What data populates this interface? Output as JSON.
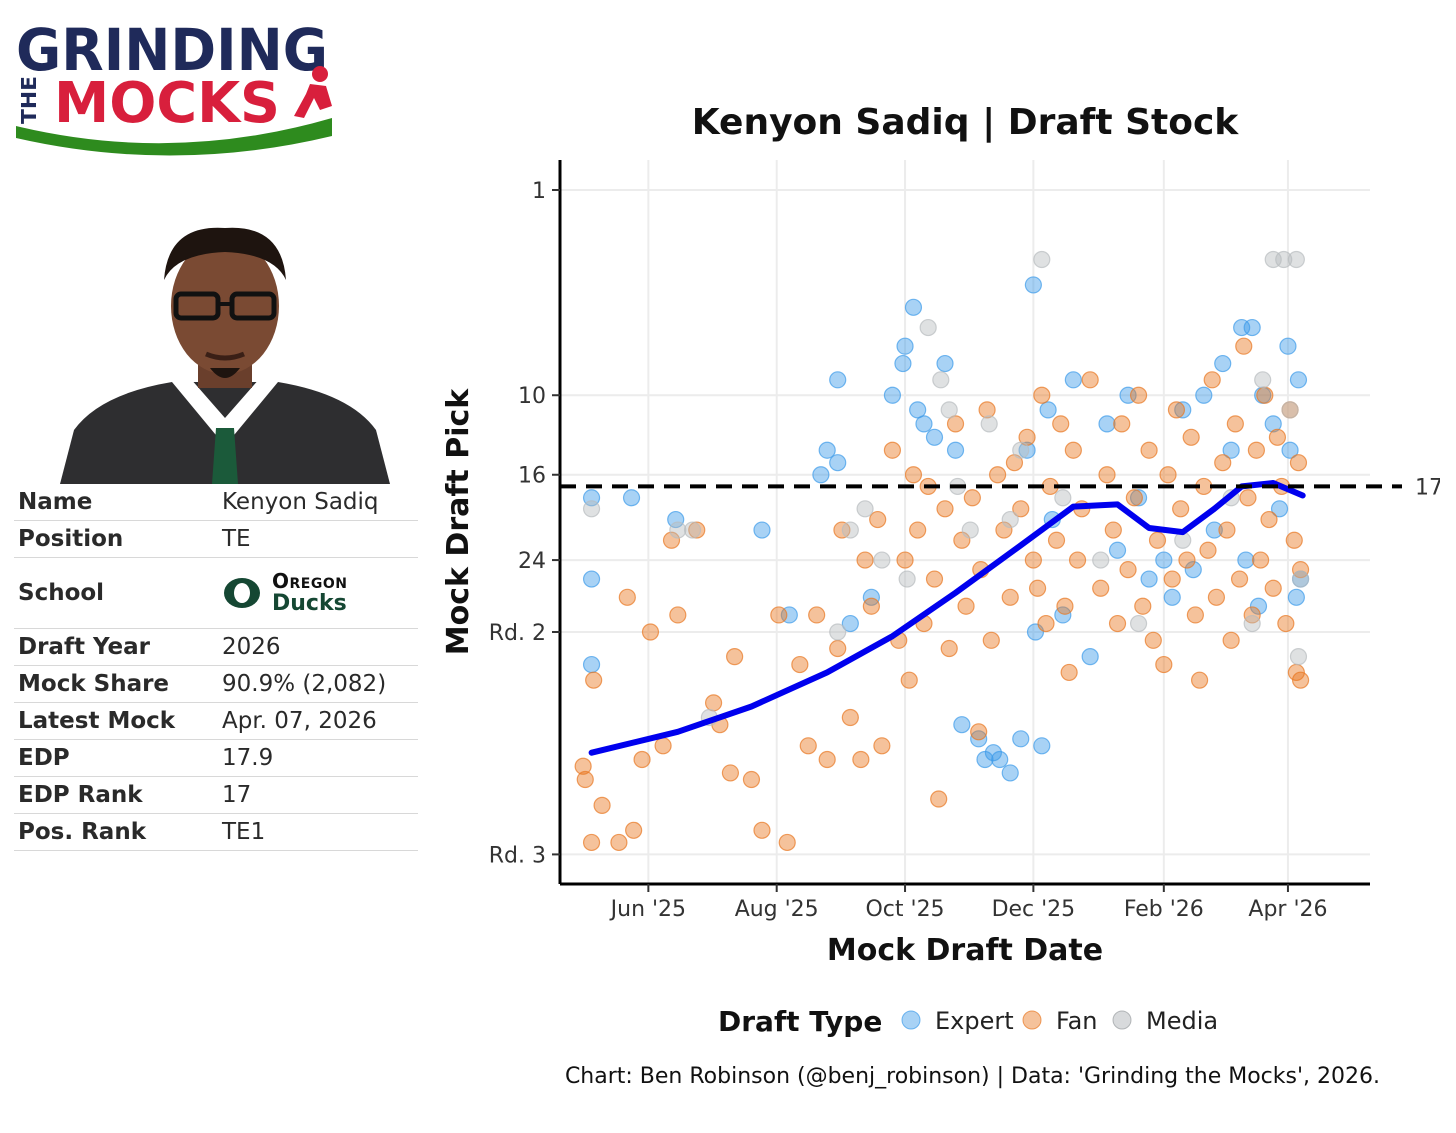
{
  "logo": {
    "line1": "GRINDING",
    "line2": "THE",
    "line3": "MOCKS"
  },
  "player": {
    "rows": [
      {
        "label": "Name",
        "value": "Kenyon Sadiq"
      },
      {
        "label": "Position",
        "value": "TE"
      },
      {
        "label": "School",
        "value": ""
      },
      {
        "label": "Draft Year",
        "value": "2026"
      },
      {
        "label": "Mock Share",
        "value": "90.9% (2,082)"
      },
      {
        "label": "Latest Mock",
        "value": "Apr. 07, 2026"
      },
      {
        "label": "EDP",
        "value": "17.9"
      },
      {
        "label": "EDP Rank",
        "value": "17"
      },
      {
        "label": "Pos. Rank",
        "value": "TE1"
      }
    ],
    "school": {
      "line1": "Oregon",
      "line2": "Ducks",
      "mark": "O"
    }
  },
  "colors": {
    "expert": "#3d9be9",
    "fan": "#e87722",
    "media": "#b8bcbf",
    "trend": "#0000ee",
    "oregon_green": "#154733",
    "oregon_yellow": "#fee123",
    "logo_navy": "#1f2a5a",
    "logo_red": "#d81f3c",
    "logo_green": "#2e8b1e"
  },
  "chart_data": {
    "type": "scatter",
    "title": "Kenyon Sadiq | Draft Stock",
    "xlabel": "Mock Draft Date",
    "ylabel": "Mock Draft Pick",
    "x_ticks": [
      "2025-06-01",
      "2025-08-01",
      "2025-10-01",
      "2025-12-01",
      "2026-02-01",
      "2026-04-01"
    ],
    "x_tick_labels": [
      "Jun '25",
      "Aug '25",
      "Oct '25",
      "Dec '25",
      "Feb '26",
      "Apr '26"
    ],
    "xlim": [
      "2025-04-20",
      "2026-05-10"
    ],
    "y_ticks": [
      1,
      10,
      16,
      24,
      32,
      64
    ],
    "y_tick_labels": [
      "1",
      "10",
      "16",
      "24",
      "Rd. 2",
      "Rd. 3"
    ],
    "y_scale": "sqrt",
    "y_reversed": true,
    "ylim": [
      1,
      67
    ],
    "reference_line": {
      "y": 17,
      "label": "17",
      "style": "dashed"
    },
    "legend": {
      "title": "Draft Type",
      "entries": [
        "Expert",
        "Fan",
        "Media"
      ],
      "position": "bottom"
    },
    "grid": true,
    "caption": "Chart: Ben Robinson (@benj_robinson) | Data: 'Grinding the Mocks', 2026.",
    "trend": {
      "x": [
        "2025-05-05",
        "2025-06-15",
        "2025-07-20",
        "2025-08-25",
        "2025-09-25",
        "2025-10-25",
        "2025-11-25",
        "2025-12-20",
        "2026-01-10",
        "2026-01-25",
        "2026-02-10",
        "2026-02-25",
        "2026-03-10",
        "2026-03-25",
        "2026-04-08"
      ],
      "y": [
        48,
        45,
        41.5,
        37,
        32.5,
        27.5,
        22.5,
        18.8,
        18.6,
        20.8,
        21.2,
        19,
        17,
        16.7,
        17.8
      ]
    },
    "series": [
      {
        "name": "Expert",
        "points": [
          [
            "2025-05-05",
            18
          ],
          [
            "2025-05-05",
            26
          ],
          [
            "2025-05-05",
            36
          ],
          [
            "2025-05-24",
            18
          ],
          [
            "2025-06-14",
            20
          ],
          [
            "2025-07-25",
            21
          ],
          [
            "2025-08-07",
            30
          ],
          [
            "2025-08-22",
            16
          ],
          [
            "2025-08-25",
            14
          ],
          [
            "2025-08-30",
            9
          ],
          [
            "2025-08-30",
            15
          ],
          [
            "2025-09-05",
            31
          ],
          [
            "2025-09-15",
            28
          ],
          [
            "2025-09-25",
            10
          ],
          [
            "2025-09-30",
            8
          ],
          [
            "2025-10-01",
            7
          ],
          [
            "2025-10-05",
            5
          ],
          [
            "2025-10-07",
            11
          ],
          [
            "2025-10-10",
            12
          ],
          [
            "2025-10-15",
            13
          ],
          [
            "2025-10-20",
            8
          ],
          [
            "2025-10-25",
            14
          ],
          [
            "2025-10-28",
            44
          ],
          [
            "2025-11-05",
            46
          ],
          [
            "2025-11-08",
            49
          ],
          [
            "2025-11-12",
            48
          ],
          [
            "2025-11-15",
            49
          ],
          [
            "2025-11-20",
            51
          ],
          [
            "2025-11-25",
            46
          ],
          [
            "2025-11-28",
            14
          ],
          [
            "2025-12-01",
            4
          ],
          [
            "2025-12-02",
            32
          ],
          [
            "2025-12-05",
            47
          ],
          [
            "2025-12-08",
            11
          ],
          [
            "2025-12-10",
            20
          ],
          [
            "2025-12-15",
            30
          ],
          [
            "2025-12-20",
            9
          ],
          [
            "2025-12-28",
            35
          ],
          [
            "2026-01-05",
            12
          ],
          [
            "2026-01-10",
            23
          ],
          [
            "2026-01-15",
            10
          ],
          [
            "2026-01-20",
            18
          ],
          [
            "2026-01-25",
            26
          ],
          [
            "2026-02-01",
            24
          ],
          [
            "2026-02-05",
            28
          ],
          [
            "2026-02-10",
            11
          ],
          [
            "2026-02-15",
            25
          ],
          [
            "2026-02-20",
            10
          ],
          [
            "2026-02-25",
            21
          ],
          [
            "2026-03-01",
            8
          ],
          [
            "2026-03-05",
            14
          ],
          [
            "2026-03-10",
            6
          ],
          [
            "2026-03-12",
            24
          ],
          [
            "2026-03-15",
            6
          ],
          [
            "2026-03-18",
            29
          ],
          [
            "2026-03-20",
            10
          ],
          [
            "2026-03-25",
            12
          ],
          [
            "2026-03-28",
            19
          ],
          [
            "2026-04-01",
            7
          ],
          [
            "2026-04-02",
            14
          ],
          [
            "2026-04-05",
            28
          ],
          [
            "2026-04-06",
            9
          ],
          [
            "2026-04-07",
            26
          ]
        ]
      },
      {
        "name": "Fan",
        "points": [
          [
            "2025-05-01",
            50
          ],
          [
            "2025-05-02",
            52
          ],
          [
            "2025-05-05",
            62
          ],
          [
            "2025-05-06",
            38
          ],
          [
            "2025-05-10",
            56
          ],
          [
            "2025-05-18",
            62
          ],
          [
            "2025-05-22",
            28
          ],
          [
            "2025-05-25",
            60
          ],
          [
            "2025-05-29",
            49
          ],
          [
            "2025-06-02",
            32
          ],
          [
            "2025-06-08",
            47
          ],
          [
            "2025-06-12",
            22
          ],
          [
            "2025-06-15",
            30
          ],
          [
            "2025-06-24",
            21
          ],
          [
            "2025-07-02",
            41
          ],
          [
            "2025-07-05",
            44
          ],
          [
            "2025-07-10",
            51
          ],
          [
            "2025-07-12",
            35
          ],
          [
            "2025-07-20",
            52
          ],
          [
            "2025-07-25",
            60
          ],
          [
            "2025-08-02",
            30
          ],
          [
            "2025-08-06",
            62
          ],
          [
            "2025-08-12",
            36
          ],
          [
            "2025-08-16",
            47
          ],
          [
            "2025-08-20",
            30
          ],
          [
            "2025-08-25",
            49
          ],
          [
            "2025-08-30",
            34
          ],
          [
            "2025-09-01",
            21
          ],
          [
            "2025-09-05",
            43
          ],
          [
            "2025-09-10",
            49
          ],
          [
            "2025-09-12",
            24
          ],
          [
            "2025-09-15",
            29
          ],
          [
            "2025-09-18",
            20
          ],
          [
            "2025-09-20",
            47
          ],
          [
            "2025-09-25",
            14
          ],
          [
            "2025-09-28",
            33
          ],
          [
            "2025-10-01",
            24
          ],
          [
            "2025-10-03",
            38
          ],
          [
            "2025-10-05",
            16
          ],
          [
            "2025-10-07",
            21
          ],
          [
            "2025-10-10",
            31
          ],
          [
            "2025-10-12",
            17
          ],
          [
            "2025-10-15",
            26
          ],
          [
            "2025-10-17",
            55
          ],
          [
            "2025-10-20",
            19
          ],
          [
            "2025-10-22",
            34
          ],
          [
            "2025-10-25",
            12
          ],
          [
            "2025-10-28",
            22
          ],
          [
            "2025-10-30",
            29
          ],
          [
            "2025-11-02",
            18
          ],
          [
            "2025-11-05",
            45
          ],
          [
            "2025-11-06",
            25
          ],
          [
            "2025-11-09",
            11
          ],
          [
            "2025-11-11",
            33
          ],
          [
            "2025-11-14",
            16
          ],
          [
            "2025-11-17",
            21
          ],
          [
            "2025-11-20",
            28
          ],
          [
            "2025-11-22",
            15
          ],
          [
            "2025-11-25",
            19
          ],
          [
            "2025-11-28",
            13
          ],
          [
            "2025-12-01",
            24
          ],
          [
            "2025-12-03",
            27
          ],
          [
            "2025-12-05",
            10
          ],
          [
            "2025-12-07",
            31
          ],
          [
            "2025-12-09",
            17
          ],
          [
            "2025-12-12",
            22
          ],
          [
            "2025-12-14",
            12
          ],
          [
            "2025-12-16",
            29
          ],
          [
            "2025-12-18",
            37
          ],
          [
            "2025-12-20",
            14
          ],
          [
            "2025-12-22",
            24
          ],
          [
            "2025-12-24",
            19
          ],
          [
            "2025-12-28",
            9
          ],
          [
            "2026-01-02",
            27
          ],
          [
            "2026-01-05",
            16
          ],
          [
            "2026-01-08",
            21
          ],
          [
            "2026-01-10",
            31
          ],
          [
            "2026-01-12",
            12
          ],
          [
            "2026-01-15",
            25
          ],
          [
            "2026-01-18",
            18
          ],
          [
            "2026-01-20",
            10
          ],
          [
            "2026-01-22",
            29
          ],
          [
            "2026-01-25",
            14
          ],
          [
            "2026-01-27",
            33
          ],
          [
            "2026-01-29",
            22
          ],
          [
            "2026-02-01",
            36
          ],
          [
            "2026-02-03",
            16
          ],
          [
            "2026-02-05",
            26
          ],
          [
            "2026-02-07",
            11
          ],
          [
            "2026-02-09",
            19
          ],
          [
            "2026-02-12",
            24
          ],
          [
            "2026-02-14",
            13
          ],
          [
            "2026-02-16",
            30
          ],
          [
            "2026-02-18",
            38
          ],
          [
            "2026-02-20",
            17
          ],
          [
            "2026-02-22",
            23
          ],
          [
            "2026-02-24",
            9
          ],
          [
            "2026-02-26",
            28
          ],
          [
            "2026-03-01",
            15
          ],
          [
            "2026-03-03",
            21
          ],
          [
            "2026-03-05",
            33
          ],
          [
            "2026-03-07",
            12
          ],
          [
            "2026-03-09",
            26
          ],
          [
            "2026-03-11",
            7
          ],
          [
            "2026-03-13",
            18
          ],
          [
            "2026-03-15",
            30
          ],
          [
            "2026-03-17",
            14
          ],
          [
            "2026-03-19",
            24
          ],
          [
            "2026-03-21",
            10
          ],
          [
            "2026-03-23",
            20
          ],
          [
            "2026-03-25",
            27
          ],
          [
            "2026-03-27",
            13
          ],
          [
            "2026-03-29",
            17
          ],
          [
            "2026-03-31",
            31
          ],
          [
            "2026-04-02",
            11
          ],
          [
            "2026-04-04",
            22
          ],
          [
            "2026-04-05",
            37
          ],
          [
            "2026-04-06",
            15
          ],
          [
            "2026-04-07",
            25
          ],
          [
            "2026-04-07",
            38
          ]
        ]
      },
      {
        "name": "Media",
        "points": [
          [
            "2025-05-05",
            19
          ],
          [
            "2025-06-15",
            21
          ],
          [
            "2025-06-30",
            43
          ],
          [
            "2025-06-22",
            21
          ],
          [
            "2025-08-30",
            32
          ],
          [
            "2025-09-05",
            21
          ],
          [
            "2025-09-12",
            19
          ],
          [
            "2025-09-20",
            24
          ],
          [
            "2025-10-02",
            26
          ],
          [
            "2025-10-12",
            6
          ],
          [
            "2025-10-18",
            9
          ],
          [
            "2025-10-22",
            11
          ],
          [
            "2025-10-26",
            17
          ],
          [
            "2025-11-01",
            21
          ],
          [
            "2025-11-10",
            12
          ],
          [
            "2025-11-20",
            20
          ],
          [
            "2025-11-25",
            14
          ],
          [
            "2025-12-05",
            3
          ],
          [
            "2025-12-15",
            18
          ],
          [
            "2026-01-02",
            24
          ],
          [
            "2026-01-20",
            31
          ],
          [
            "2026-02-10",
            22
          ],
          [
            "2026-03-05",
            18
          ],
          [
            "2026-03-15",
            31
          ],
          [
            "2026-03-20",
            9
          ],
          [
            "2026-03-25",
            3
          ],
          [
            "2026-03-30",
            3
          ],
          [
            "2026-04-02",
            11
          ],
          [
            "2026-04-05",
            3
          ],
          [
            "2026-04-06",
            35
          ],
          [
            "2026-04-07",
            26
          ]
        ]
      }
    ]
  }
}
